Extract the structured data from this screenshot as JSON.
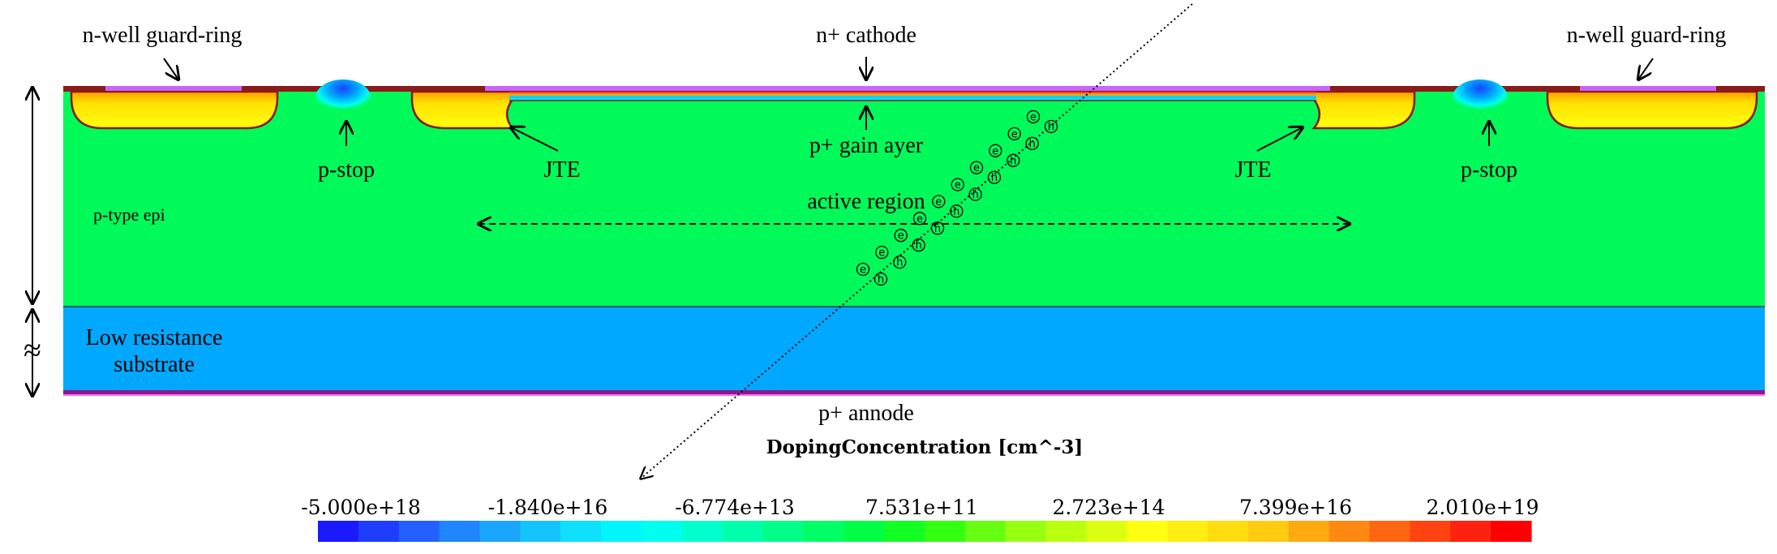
{
  "labels": {
    "ngr_left": "n-well guard-ring",
    "ngr_right": "n-well guard-ring",
    "cathode": "n+ cathode",
    "gain": "p+ gain ayer",
    "pstop_left": "p-stop",
    "pstop_right": "p-stop",
    "jte_left": "JTE",
    "jte_right": "JTE",
    "active": "active region",
    "epi": "p-type epi",
    "substrate_l1": "Low resistance",
    "substrate_l2": "substrate",
    "anode": "p+ annode",
    "break_symbol": "≈"
  },
  "carriers": {
    "electron": "e",
    "hole": "h",
    "pairs": 10
  },
  "colorbar": {
    "title": "DopingConcentration [cm^-3]",
    "ticks": [
      "-5.000e+18",
      "-1.840e+16",
      "-6.774e+13",
      "7.531e+11",
      "2.723e+14",
      "7.399e+16",
      "2.010e+19"
    ],
    "colors": [
      "#1a1aff",
      "#1f3dff",
      "#2460ff",
      "#1f86ff",
      "#1aa6ff",
      "#14c4ff",
      "#0fe0ff",
      "#00f5ff",
      "#00ffee",
      "#00ffcc",
      "#00ffaa",
      "#00ff88",
      "#00ff66",
      "#00ff44",
      "#11ff22",
      "#33ff11",
      "#66ff11",
      "#99ff11",
      "#bbff11",
      "#ddff11",
      "#ffff11",
      "#ffee11",
      "#ffdd11",
      "#ffcc11",
      "#ffaa11",
      "#ff8811",
      "#ff6611",
      "#ff4411",
      "#ff2211",
      "#ff0000"
    ]
  },
  "colors": {
    "epi": "#00fa5a",
    "substrate": "#00a8ff",
    "gain_layer": "#00eeff",
    "nwell_dark": "#8b1a1a",
    "implant_yellow": "#ffff00",
    "implant_orange": "#ffa500",
    "metal": "#c864ff",
    "pstop": "#1a44ff"
  }
}
